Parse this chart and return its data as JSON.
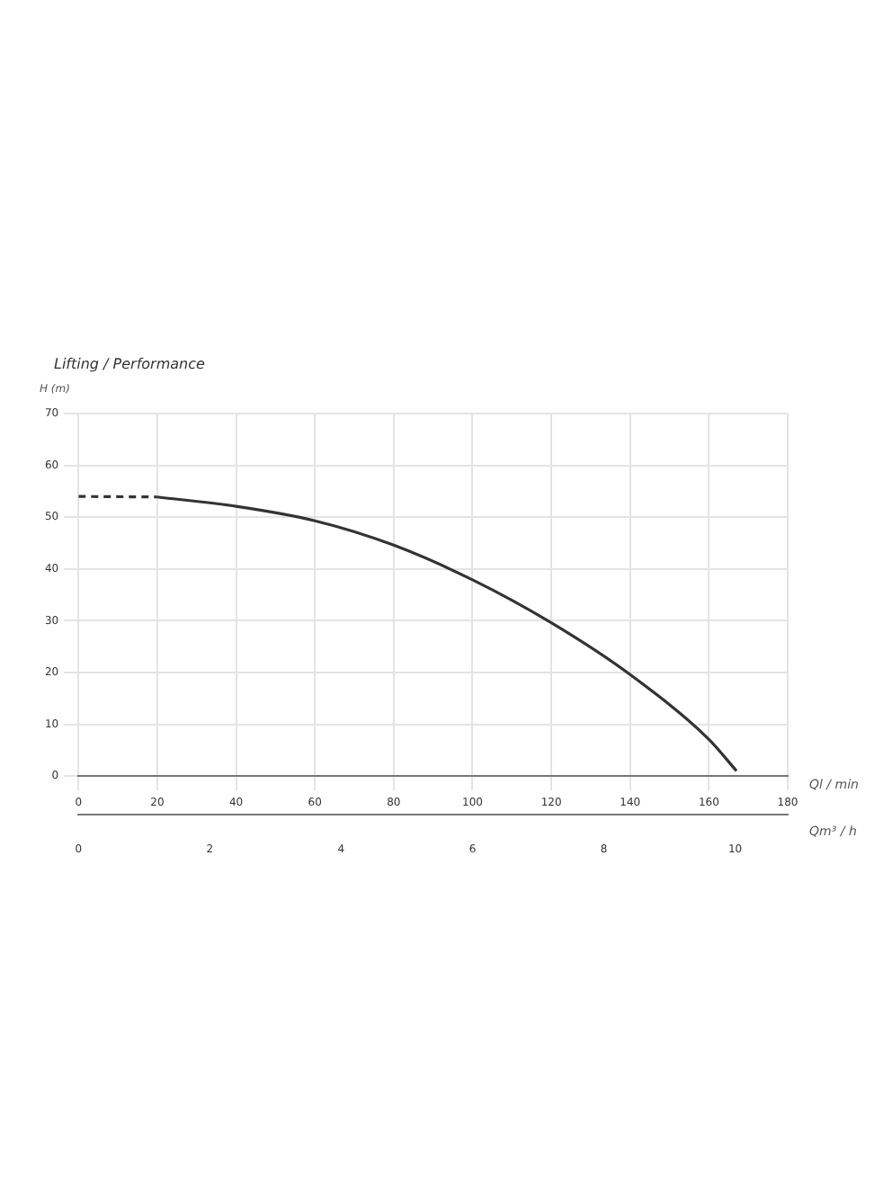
{
  "chart_data": {
    "type": "line",
    "title": "Lifting / Performance",
    "ylabel": "H (m)",
    "xlabel": "Ql / min",
    "x2label": "Qm³ / h",
    "series": [
      {
        "color": "#333333",
        "line_style": "dashed",
        "x": [
          0,
          20
        ],
        "values": [
          54,
          53.9
        ]
      },
      {
        "color": "#333333",
        "line_style": "solid",
        "x": [
          20,
          40,
          60,
          80,
          100,
          120,
          140,
          160,
          167
        ],
        "values": [
          53.9,
          52.1,
          49.3,
          44.6,
          37.9,
          29.6,
          19.6,
          7.1,
          1
        ]
      }
    ],
    "xlim": [
      0,
      180
    ],
    "xticks": [
      0,
      20,
      40,
      60,
      80,
      100,
      120,
      140,
      160,
      180
    ],
    "x2lim": [
      0,
      10.8
    ],
    "x2ticks": [
      0,
      2,
      4,
      6,
      8,
      10
    ],
    "ylim": [
      0,
      70
    ],
    "yticks": [
      0,
      10,
      20,
      30,
      40,
      50,
      60,
      70
    ],
    "grid": true,
    "legend": false,
    "marker": "none"
  }
}
